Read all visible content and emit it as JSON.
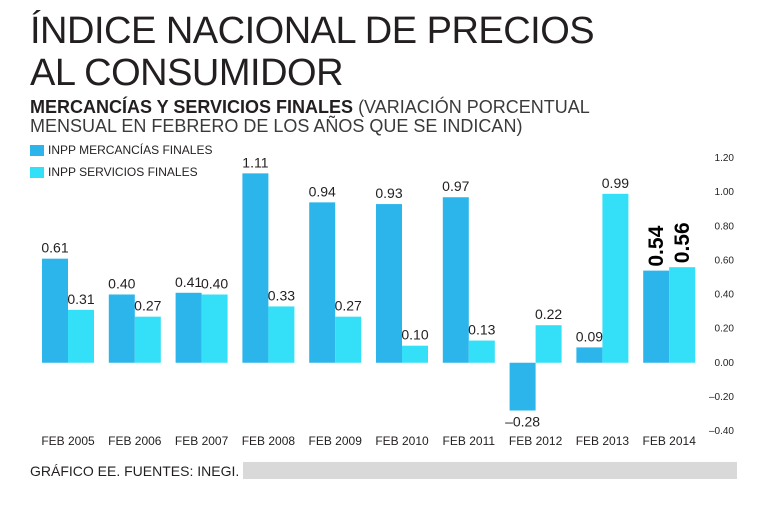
{
  "title_line1": "ÍNDICE NACIONAL DE PRECIOS",
  "title_line2": "AL CONSUMIDOR",
  "subtitle_bold": "MERCANCÍAS Y SERVICIOS FINALES",
  "subtitle_rest": " (VARIACIÓN PORCENTUAL MENSUAL EN FEBRERO DE LOS AÑOS QUE SE INDICAN)",
  "footer": "GRÁFICO EE. FUENTES: INEGI.",
  "colors": {
    "mercancias": "#2bb5ea",
    "servicios": "#33e0f7",
    "text": "#231f20",
    "emphasis": "#000000"
  },
  "chart_data": {
    "type": "bar",
    "categories": [
      "FEB 2005",
      "FEB 2006",
      "FEB 2007",
      "FEB 2008",
      "FEB 2009",
      "FEB 2010",
      "FEB 2011",
      "FEB 2012",
      "FEB 2013",
      "FEB 2014"
    ],
    "series": [
      {
        "name": "INPP MERCANCÍAS FINALES",
        "values": [
          0.61,
          0.4,
          0.41,
          1.11,
          0.94,
          0.93,
          0.97,
          -0.28,
          0.09,
          0.54
        ],
        "labels": [
          "0.61",
          "0.40",
          "0.41",
          "1.11",
          "0.94",
          "0.93",
          "0.97",
          "–0.28",
          "0.09",
          "0.54"
        ]
      },
      {
        "name": "INPP SERVICIOS  FINALES",
        "values": [
          0.31,
          0.27,
          0.4,
          0.33,
          0.27,
          0.1,
          0.13,
          0.22,
          0.99,
          0.56
        ],
        "labels": [
          "0.31",
          "0.27",
          "0.40",
          "0.33",
          "0.27",
          "0.10",
          "0.13",
          "0.22",
          "0.99",
          "0.56"
        ]
      }
    ],
    "highlight_category": "FEB 2014",
    "ylim": [
      -0.4,
      1.2
    ],
    "yticks": [
      1.2,
      1.0,
      0.8,
      0.6,
      0.4,
      0.2,
      0.0,
      -0.2,
      -0.4
    ],
    "ytick_labels": [
      "1.20",
      "1.00",
      "0.80",
      "0.60",
      "0.40",
      "0.20",
      "0.00",
      "–0.20",
      "–0.40"
    ],
    "ylabel": "",
    "xlabel": "",
    "grid": false,
    "legend_position": "top-left"
  }
}
